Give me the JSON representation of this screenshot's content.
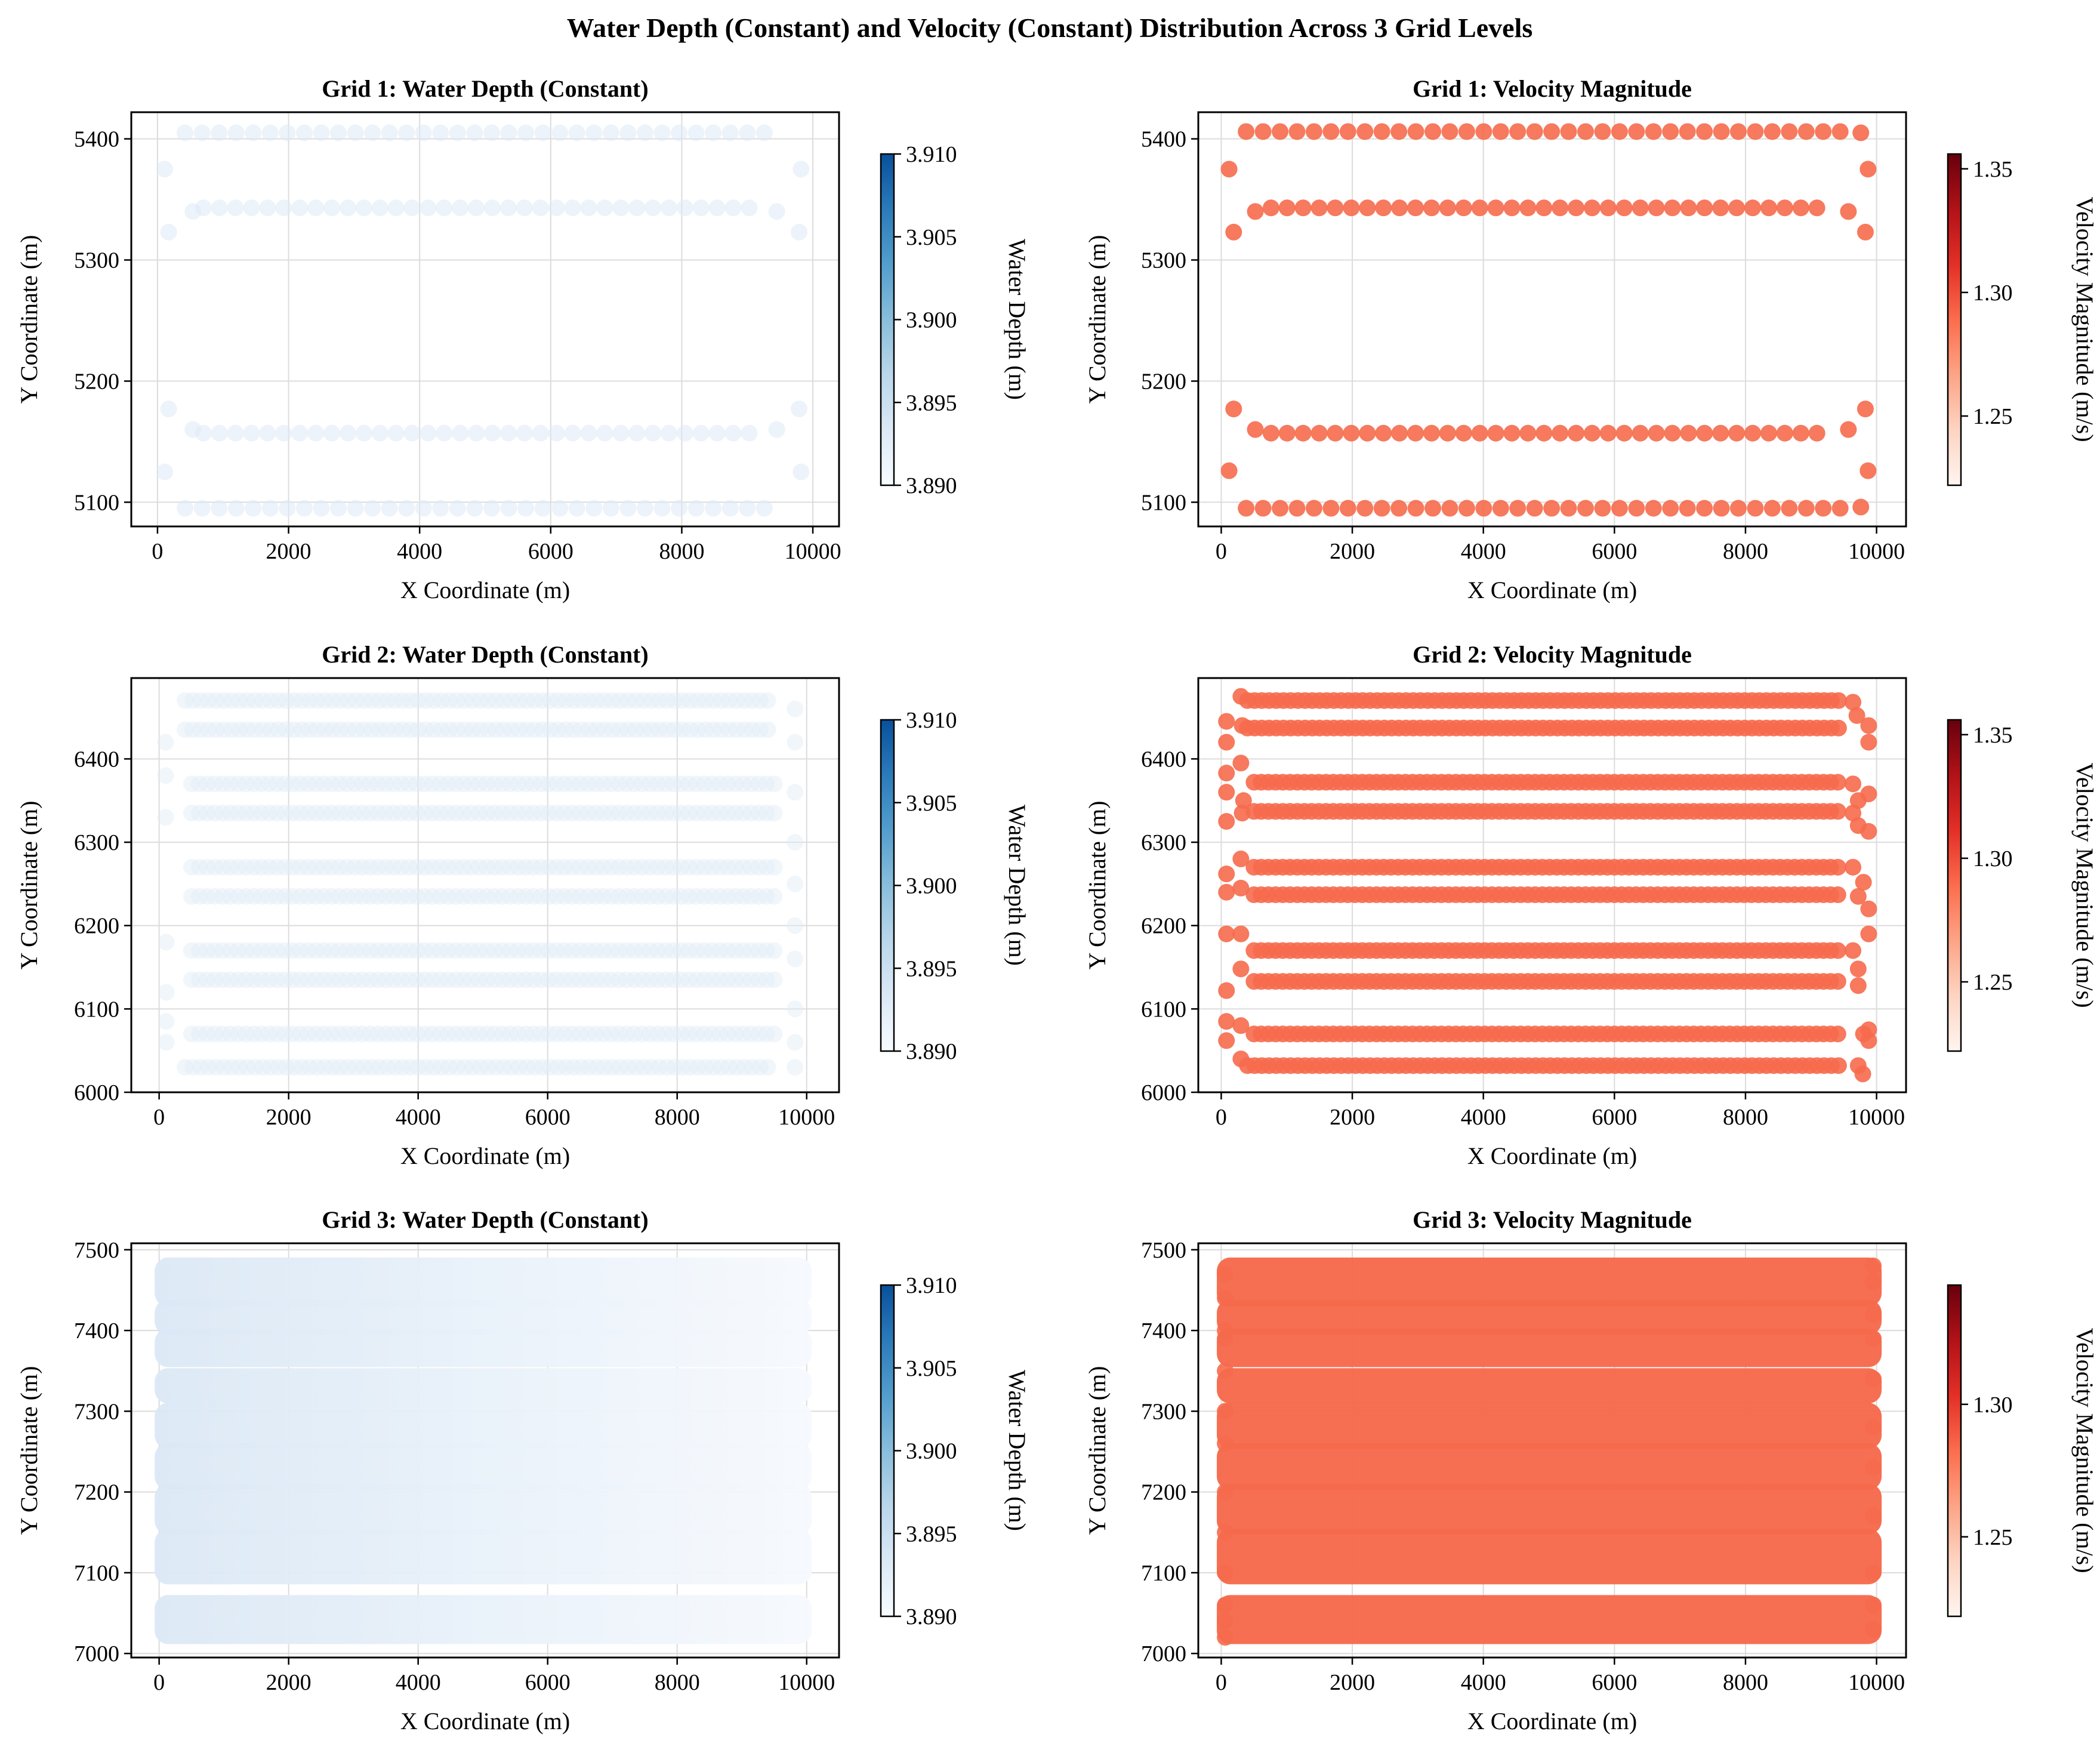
{
  "figure": {
    "title": "Water Depth (Constant) and Velocity (Constant) Distribution Across 3 Grid Levels"
  },
  "colors": {
    "depth_marker": "#dfeaf6",
    "velocity_marker": "#f66a4c",
    "blues_cmap": [
      "#f7fbff",
      "#dbe9f6",
      "#bad6eb",
      "#89bedc",
      "#539ecd",
      "#2b7bba",
      "#08519c"
    ],
    "reds_cmap": [
      "#fff5f0",
      "#fdd4c2",
      "#fca486",
      "#fb6d4d",
      "#e32f27",
      "#b11218",
      "#67000d"
    ]
  },
  "chart_data": [
    {
      "type": "scatter",
      "id": "grid1-depth",
      "title": "Grid 1: Water Depth (Constant)",
      "xlabel": "X Coordinate (m)",
      "ylabel": "Y Coordinate (m)",
      "xlim": [
        -400,
        10400
      ],
      "ylim": [
        5080,
        5422
      ],
      "xticks": [
        0,
        2000,
        4000,
        6000,
        8000,
        10000
      ],
      "yticks": [
        5100,
        5200,
        5300,
        5400
      ],
      "grid": true,
      "variable": "depth",
      "marker_alpha": 0.55,
      "value": 3.89,
      "colorbar": {
        "label": "Water Depth (m)",
        "range": [
          3.89,
          3.91
        ],
        "ticks": [
          "3.910",
          "3.905",
          "3.900",
          "3.895",
          "3.890"
        ],
        "tick_values": [
          3.91,
          3.905,
          3.9,
          3.895,
          3.89
        ],
        "cmap": "blues"
      },
      "rows": [
        {
          "y": 5405,
          "x": [
            420,
            9420
          ],
          "step": 260
        },
        {
          "y": 5343,
          "x": [
            700,
            9270
          ],
          "step": 245
        },
        {
          "y": 5157,
          "x": [
            700,
            9270
          ],
          "step": 245
        },
        {
          "y": 5095,
          "x": [
            420,
            9420
          ],
          "step": 260
        }
      ],
      "points": [
        [
          110,
          5375
        ],
        [
          170,
          5323
        ],
        [
          170,
          5177
        ],
        [
          110,
          5125
        ],
        [
          9820,
          5375
        ],
        [
          9790,
          5323
        ],
        [
          9790,
          5177
        ],
        [
          9820,
          5125
        ],
        [
          540,
          5340
        ],
        [
          9450,
          5340
        ],
        [
          540,
          5160
        ],
        [
          9450,
          5160
        ]
      ]
    },
    {
      "type": "scatter",
      "id": "grid1-velocity",
      "title": "Grid 1: Velocity Magnitude",
      "xlabel": "X Coordinate (m)",
      "ylabel": "Y Coordinate (m)",
      "xlim": [
        -350,
        10450
      ],
      "ylim": [
        5080,
        5422
      ],
      "xticks": [
        0,
        2000,
        4000,
        6000,
        8000,
        10000
      ],
      "yticks": [
        5100,
        5200,
        5300,
        5400
      ],
      "grid": true,
      "variable": "velocity",
      "marker_alpha": 0.9,
      "value": 1.29,
      "colorbar": {
        "label": "Velocity Magnitude (m/s)",
        "range": [
          1.222,
          1.356
        ],
        "ticks": [
          "1.35",
          "1.30",
          "1.25"
        ],
        "tick_values": [
          1.35,
          1.3,
          1.25
        ],
        "cmap": "reds"
      },
      "rows": [
        {
          "y": 5406,
          "x": [
            380,
            9510
          ],
          "step": 259
        },
        {
          "y": 5343,
          "x": [
            760,
            9330
          ],
          "step": 245
        },
        {
          "y": 5157,
          "x": [
            760,
            9330
          ],
          "step": 245
        },
        {
          "y": 5095,
          "x": [
            380,
            9510
          ],
          "step": 259
        }
      ],
      "points": [
        [
          120,
          5375
        ],
        [
          190,
          5323
        ],
        [
          190,
          5177
        ],
        [
          120,
          5126
        ],
        [
          9870,
          5375
        ],
        [
          9830,
          5323
        ],
        [
          9830,
          5177
        ],
        [
          9870,
          5126
        ],
        [
          520,
          5340
        ],
        [
          9570,
          5340
        ],
        [
          520,
          5160
        ],
        [
          9570,
          5160
        ],
        [
          9760,
          5405
        ],
        [
          9760,
          5096
        ]
      ]
    },
    {
      "type": "scatter",
      "id": "grid2-depth",
      "title": "Grid 2: Water Depth (Constant)",
      "xlabel": "X Coordinate (m)",
      "ylabel": "Y Coordinate (m)",
      "xlim": [
        -430,
        10500
      ],
      "ylim": [
        6000,
        6497
      ],
      "xticks": [
        0,
        2000,
        4000,
        6000,
        8000,
        10000
      ],
      "yticks": [
        6000,
        6100,
        6200,
        6300,
        6400
      ],
      "grid": true,
      "variable": "depth",
      "marker_alpha": 0.45,
      "value": 3.89,
      "colorbar": {
        "label": "Water Depth (m)",
        "range": [
          3.89,
          3.91
        ],
        "ticks": [
          "3.910",
          "3.905",
          "3.900",
          "3.895",
          "3.890"
        ],
        "tick_values": [
          3.91,
          3.905,
          3.9,
          3.895,
          3.89
        ],
        "cmap": "blues"
      },
      "rows": [
        {
          "y": 6470,
          "x": [
            400,
            9500
          ],
          "step": 120
        },
        {
          "y": 6435,
          "x": [
            400,
            9500
          ],
          "step": 120
        },
        {
          "y": 6370,
          "x": [
            500,
            9500
          ],
          "step": 120
        },
        {
          "y": 6335,
          "x": [
            500,
            9500
          ],
          "step": 120
        },
        {
          "y": 6270,
          "x": [
            500,
            9500
          ],
          "step": 120
        },
        {
          "y": 6235,
          "x": [
            500,
            9500
          ],
          "step": 120
        },
        {
          "y": 6170,
          "x": [
            500,
            9500
          ],
          "step": 120
        },
        {
          "y": 6135,
          "x": [
            500,
            9500
          ],
          "step": 120
        },
        {
          "y": 6070,
          "x": [
            500,
            9500
          ],
          "step": 120
        },
        {
          "y": 6030,
          "x": [
            400,
            9500
          ],
          "step": 120
        }
      ],
      "points": [
        [
          100,
          6420
        ],
        [
          100,
          6380
        ],
        [
          100,
          6330
        ],
        [
          110,
          6180
        ],
        [
          110,
          6120
        ],
        [
          110,
          6085
        ],
        [
          110,
          6060
        ],
        [
          9820,
          6460
        ],
        [
          9820,
          6420
        ],
        [
          9820,
          6360
        ],
        [
          9820,
          6300
        ],
        [
          9820,
          6250
        ],
        [
          9820,
          6200
        ],
        [
          9820,
          6160
        ],
        [
          9820,
          6100
        ],
        [
          9820,
          6060
        ],
        [
          9820,
          6030
        ]
      ]
    },
    {
      "type": "scatter",
      "id": "grid2-velocity",
      "title": "Grid 2: Velocity Magnitude",
      "xlabel": "X Coordinate (m)",
      "ylabel": "Y Coordinate (m)",
      "xlim": [
        -350,
        10450
      ],
      "ylim": [
        6000,
        6497
      ],
      "xticks": [
        0,
        2000,
        4000,
        6000,
        8000,
        10000
      ],
      "yticks": [
        6000,
        6100,
        6200,
        6300,
        6400
      ],
      "grid": true,
      "variable": "velocity",
      "marker_alpha": 0.9,
      "value": 1.29,
      "colorbar": {
        "label": "Velocity Magnitude (m/s)",
        "range": [
          1.222,
          1.356
        ],
        "ticks": [
          "1.35",
          "1.30",
          "1.25"
        ],
        "tick_values": [
          1.35,
          1.3,
          1.25
        ],
        "cmap": "reds"
      },
      "rows": [
        {
          "y": 6470,
          "x": [
            400,
            9500
          ],
          "step": 110
        },
        {
          "y": 6437,
          "x": [
            400,
            9500
          ],
          "step": 110
        },
        {
          "y": 6372,
          "x": [
            500,
            9500
          ],
          "step": 110
        },
        {
          "y": 6337,
          "x": [
            500,
            9500
          ],
          "step": 110
        },
        {
          "y": 6270,
          "x": [
            500,
            9500
          ],
          "step": 110
        },
        {
          "y": 6237,
          "x": [
            500,
            9500
          ],
          "step": 110
        },
        {
          "y": 6170,
          "x": [
            500,
            9500
          ],
          "step": 110
        },
        {
          "y": 6133,
          "x": [
            500,
            9500
          ],
          "step": 110
        },
        {
          "y": 6070,
          "x": [
            500,
            9500
          ],
          "step": 110
        },
        {
          "y": 6032,
          "x": [
            400,
            9500
          ],
          "step": 110
        }
      ],
      "points": [
        [
          80,
          6445
        ],
        [
          80,
          6420
        ],
        [
          80,
          6383
        ],
        [
          80,
          6360
        ],
        [
          80,
          6325
        ],
        [
          300,
          6475
        ],
        [
          320,
          6440
        ],
        [
          300,
          6395
        ],
        [
          340,
          6350
        ],
        [
          320,
          6335
        ],
        [
          80,
          6262
        ],
        [
          80,
          6240
        ],
        [
          80,
          6190
        ],
        [
          80,
          6122
        ],
        [
          80,
          6085
        ],
        [
          80,
          6062
        ],
        [
          300,
          6280
        ],
        [
          300,
          6245
        ],
        [
          300,
          6190
        ],
        [
          300,
          6148
        ],
        [
          300,
          6080
        ],
        [
          300,
          6040
        ],
        [
          9640,
          6468
        ],
        [
          9700,
          6452
        ],
        [
          9880,
          6440
        ],
        [
          9880,
          6420
        ],
        [
          9880,
          6358
        ],
        [
          9880,
          6313
        ],
        [
          9640,
          6370
        ],
        [
          9720,
          6350
        ],
        [
          9640,
          6335
        ],
        [
          9720,
          6320
        ],
        [
          9800,
          6252
        ],
        [
          9880,
          6220
        ],
        [
          9880,
          6190
        ],
        [
          9640,
          6270
        ],
        [
          9720,
          6235
        ],
        [
          9640,
          6170
        ],
        [
          9720,
          6148
        ],
        [
          9720,
          6128
        ],
        [
          9880,
          6075
        ],
        [
          9880,
          6062
        ],
        [
          9800,
          6070
        ],
        [
          9720,
          6032
        ],
        [
          9790,
          6022
        ]
      ]
    },
    {
      "type": "scatter",
      "id": "grid3-depth",
      "title": "Grid 3: Water Depth (Constant)",
      "xlabel": "X Coordinate (m)",
      "ylabel": "Y Coordinate (m)",
      "xlim": [
        -430,
        10500
      ],
      "ylim": [
        6995,
        7508
      ],
      "xticks": [
        0,
        2000,
        4000,
        6000,
        8000,
        10000
      ],
      "yticks": [
        7000,
        7100,
        7200,
        7300,
        7400,
        7500
      ],
      "grid": true,
      "variable": "depth",
      "marker_alpha": 0.5,
      "value": 3.89,
      "dense": true,
      "band_edges": [
        7022,
        7062,
        7096,
        7144,
        7158,
        7200,
        7213,
        7250,
        7264,
        7300,
        7320,
        7343,
        7365,
        7392,
        7405,
        7428,
        7440,
        7480
      ],
      "colorbar": {
        "label": "Water Depth (m)",
        "range": [
          3.89,
          3.91
        ],
        "ticks": [
          "3.910",
          "3.905",
          "3.900",
          "3.895",
          "3.890"
        ],
        "tick_values": [
          3.91,
          3.905,
          3.9,
          3.895,
          3.89
        ],
        "cmap": "blues"
      },
      "points": []
    },
    {
      "type": "scatter",
      "id": "grid3-velocity",
      "title": "Grid 3: Velocity Magnitude",
      "xlabel": "X Coordinate (m)",
      "ylabel": "Y Coordinate (m)",
      "xlim": [
        -350,
        10450
      ],
      "ylim": [
        6995,
        7508
      ],
      "xticks": [
        0,
        2000,
        4000,
        6000,
        8000,
        10000
      ],
      "yticks": [
        7000,
        7100,
        7200,
        7300,
        7400,
        7500
      ],
      "grid": true,
      "variable": "velocity",
      "marker_alpha": 0.9,
      "value": 1.29,
      "dense": true,
      "band_edges": [
        7022,
        7062,
        7096,
        7144,
        7158,
        7200,
        7213,
        7250,
        7264,
        7300,
        7320,
        7343,
        7365,
        7392,
        7405,
        7428,
        7440,
        7480
      ],
      "colorbar": {
        "label": "Velocity Magnitude (m/s)",
        "range": [
          1.22,
          1.345
        ],
        "ticks": [
          "1.30",
          "1.25"
        ],
        "tick_values": [
          1.3,
          1.25
        ],
        "cmap": "reds"
      },
      "points": [
        [
          60,
          7470
        ],
        [
          60,
          7440
        ],
        [
          60,
          7400
        ],
        [
          60,
          7390
        ],
        [
          60,
          7350
        ],
        [
          60,
          7300
        ],
        [
          60,
          7260
        ],
        [
          60,
          7200
        ],
        [
          60,
          7150
        ],
        [
          60,
          7100
        ],
        [
          60,
          7060
        ],
        [
          60,
          7040
        ],
        [
          60,
          7020
        ],
        [
          9950,
          7480
        ],
        [
          9950,
          7460
        ],
        [
          9950,
          7420
        ],
        [
          9950,
          7390
        ],
        [
          9950,
          7340
        ],
        [
          9950,
          7280
        ],
        [
          9950,
          7230
        ],
        [
          9950,
          7170
        ],
        [
          9950,
          7100
        ],
        [
          9950,
          7060
        ],
        [
          9950,
          7030
        ]
      ]
    }
  ]
}
